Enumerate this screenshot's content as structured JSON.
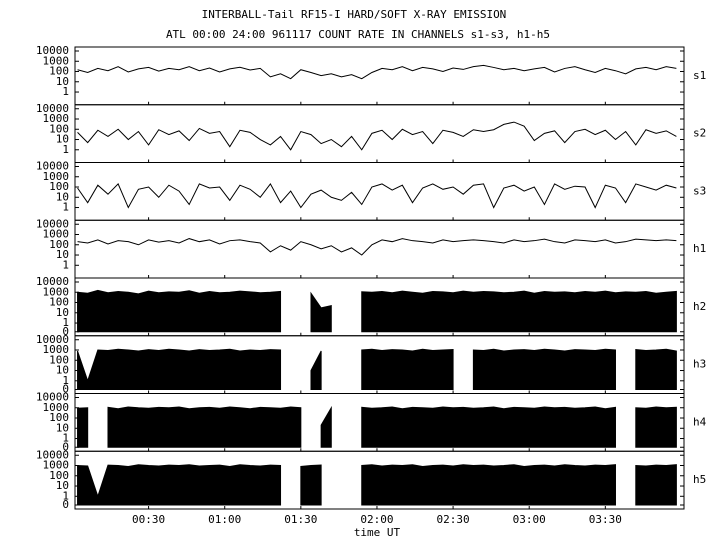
{
  "chart_data": {
    "type": "line",
    "title": "INTERBALL-Tail RF15-I HARD/SOFT X-RAY EMISSION",
    "subtitle": "ATL 00:00 24:00 961117  COUNT RATE IN CHANNELS s1-s3, h1-h5",
    "xlabel": "time UT",
    "xlim": [
      1,
      241
    ],
    "xticks": [
      {
        "value": 30,
        "label": "00:30"
      },
      {
        "value": 60,
        "label": "01:00"
      },
      {
        "value": 90,
        "label": "01:30"
      },
      {
        "value": 120,
        "label": "02:00"
      },
      {
        "value": 150,
        "label": "02:30"
      },
      {
        "value": 180,
        "label": "03:00"
      },
      {
        "value": 210,
        "label": "03:30"
      }
    ],
    "ylim": [
      0,
      10000
    ],
    "log": true,
    "x": [
      2,
      6,
      10,
      14,
      18,
      22,
      26,
      30,
      34,
      38,
      42,
      46,
      50,
      54,
      58,
      62,
      66,
      70,
      74,
      78,
      82,
      86,
      90,
      94,
      98,
      102,
      106,
      110,
      114,
      118,
      122,
      126,
      130,
      134,
      138,
      142,
      146,
      150,
      154,
      158,
      162,
      166,
      170,
      174,
      178,
      182,
      186,
      190,
      194,
      198,
      202,
      206,
      210,
      214,
      218,
      222,
      226,
      230,
      234,
      238
    ],
    "series": [
      {
        "name": "s1",
        "color": "#000000",
        "fill": false,
        "yticks": [
          10000,
          1000,
          100,
          10,
          1
        ],
        "values": [
          150,
          80,
          200,
          120,
          300,
          90,
          180,
          250,
          110,
          200,
          150,
          300,
          120,
          220,
          90,
          180,
          260,
          140,
          200,
          30,
          60,
          20,
          150,
          80,
          40,
          60,
          30,
          50,
          20,
          80,
          200,
          150,
          300,
          120,
          250,
          180,
          100,
          220,
          160,
          300,
          400,
          250,
          150,
          200,
          120,
          180,
          250,
          90,
          200,
          300,
          150,
          80,
          200,
          120,
          60,
          180,
          250,
          150,
          300,
          200
        ]
      },
      {
        "name": "s2",
        "color": "#000000",
        "fill": false,
        "yticks": [
          10000,
          1000,
          100,
          10,
          1
        ],
        "values": [
          50,
          5,
          80,
          20,
          100,
          10,
          60,
          3,
          90,
          30,
          70,
          8,
          120,
          40,
          60,
          2,
          80,
          50,
          10,
          3,
          20,
          1,
          60,
          30,
          4,
          10,
          2,
          20,
          1,
          40,
          80,
          10,
          100,
          30,
          60,
          4,
          80,
          50,
          20,
          90,
          60,
          90,
          300,
          500,
          200,
          8,
          40,
          70,
          5,
          60,
          100,
          30,
          80,
          10,
          60,
          3,
          90,
          40,
          70,
          20
        ]
      },
      {
        "name": "s3",
        "color": "#000000",
        "fill": false,
        "yticks": [
          10000,
          1000,
          100,
          10,
          1
        ],
        "values": [
          80,
          3,
          150,
          20,
          200,
          1,
          60,
          100,
          10,
          150,
          40,
          2,
          200,
          80,
          100,
          5,
          150,
          60,
          10,
          200,
          3,
          40,
          1,
          20,
          50,
          10,
          5,
          30,
          2,
          100,
          200,
          50,
          150,
          3,
          80,
          200,
          60,
          100,
          20,
          150,
          200,
          1,
          80,
          150,
          40,
          100,
          2,
          200,
          60,
          120,
          100,
          1,
          150,
          80,
          3,
          200,
          100,
          50,
          150,
          80
        ]
      },
      {
        "name": "h1",
        "color": "#000000",
        "fill": false,
        "yticks": [
          10000,
          1000,
          100,
          10,
          1
        ],
        "values": [
          200,
          150,
          300,
          120,
          250,
          200,
          100,
          300,
          180,
          250,
          150,
          400,
          200,
          300,
          120,
          250,
          300,
          200,
          150,
          20,
          80,
          30,
          200,
          100,
          40,
          80,
          20,
          50,
          10,
          100,
          300,
          200,
          400,
          250,
          200,
          150,
          300,
          200,
          250,
          300,
          250,
          200,
          150,
          300,
          200,
          250,
          350,
          200,
          150,
          300,
          250,
          200,
          300,
          150,
          200,
          350,
          300,
          250,
          300,
          250
        ]
      },
      {
        "name": "h2",
        "color": "#000000",
        "fill": true,
        "yticks": [
          10000,
          1000,
          100,
          10,
          1,
          0
        ],
        "values": [
          1000,
          800,
          1500,
          900,
          1200,
          1000,
          700,
          1300,
          900,
          1100,
          1000,
          1400,
          800,
          1200,
          900,
          1000,
          1300,
          1100,
          900,
          1000,
          1200,
          null,
          null,
          800,
          30,
          50,
          null,
          null,
          1100,
          1000,
          1200,
          900,
          1300,
          1000,
          800,
          1200,
          1100,
          900,
          1300,
          1000,
          1200,
          1100,
          900,
          1000,
          1300,
          800,
          1200,
          1000,
          1100,
          900,
          1200,
          1000,
          1300,
          900,
          1100,
          1000,
          1200,
          800,
          1000,
          1200
        ]
      },
      {
        "name": "h3",
        "color": "#000000",
        "fill": true,
        "yticks": [
          10000,
          1000,
          100,
          10,
          1,
          0
        ],
        "values": [
          800,
          1,
          1000,
          900,
          1200,
          1000,
          800,
          1100,
          900,
          1200,
          1000,
          800,
          1100,
          900,
          1000,
          1200,
          800,
          1000,
          900,
          1100,
          1000,
          null,
          null,
          10,
          800,
          null,
          null,
          null,
          1000,
          1200,
          900,
          1100,
          1000,
          800,
          1200,
          900,
          1000,
          1100,
          null,
          1000,
          900,
          1200,
          800,
          1000,
          1100,
          900,
          1200,
          1000,
          800,
          1100,
          1000,
          900,
          1200,
          1000,
          null,
          1100,
          900,
          1000,
          1200,
          800
        ]
      },
      {
        "name": "h4",
        "color": "#000000",
        "fill": true,
        "yticks": [
          10000,
          1000,
          100,
          10,
          1,
          0
        ],
        "values": [
          900,
          1000,
          null,
          1100,
          800,
          1200,
          1000,
          900,
          1100,
          1000,
          1200,
          800,
          1000,
          1100,
          900,
          1200,
          1000,
          800,
          1100,
          1000,
          900,
          1200,
          1000,
          null,
          20,
          1000,
          null,
          null,
          1100,
          900,
          1000,
          1200,
          800,
          1100,
          1000,
          900,
          1200,
          1000,
          1100,
          900,
          1000,
          1200,
          800,
          1100,
          1000,
          900,
          1200,
          1000,
          1100,
          900,
          1000,
          1200,
          800,
          1100,
          null,
          1000,
          900,
          1200,
          1000,
          1100
        ]
      },
      {
        "name": "h5",
        "color": "#000000",
        "fill": true,
        "yticks": [
          10000,
          1000,
          100,
          10,
          1,
          0
        ],
        "values": [
          1000,
          900,
          1,
          1100,
          1000,
          800,
          1200,
          1000,
          900,
          1100,
          1000,
          1200,
          900,
          1000,
          1100,
          800,
          1200,
          1000,
          900,
          1100,
          1000,
          null,
          800,
          1000,
          1100,
          null,
          null,
          null,
          1000,
          1200,
          900,
          1100,
          1000,
          1200,
          800,
          1000,
          1100,
          900,
          1200,
          1000,
          1100,
          900,
          1000,
          1200,
          800,
          1000,
          1100,
          900,
          1200,
          1000,
          900,
          1100,
          1000,
          1200,
          null,
          1000,
          900,
          1100,
          1000,
          1200
        ]
      }
    ]
  }
}
